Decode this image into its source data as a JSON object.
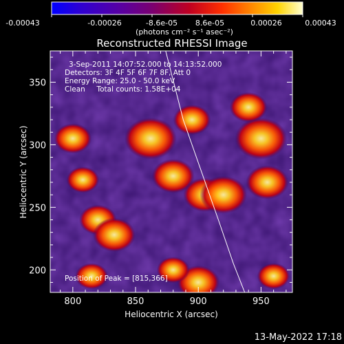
{
  "header": {
    "colorbar_ticks": [
      "-0.00043",
      "-0.00026",
      "-8.6e-05",
      "8.6e-05",
      "0.00026",
      "0.00043"
    ],
    "colorbar_units": "(photons cm⁻² s⁻¹ asec⁻²)",
    "colorbar_range": [
      -0.00043,
      0.00043
    ]
  },
  "footer": {
    "datetime": "13-May-2022 17:18"
  },
  "chart_data": {
    "type": "heatmap",
    "title": "Reconstructed RHESSI Image",
    "xlabel": "Heliocentric X (arcsec)",
    "ylabel": "Heliocentric Y (arcsec)",
    "xlim": [
      782,
      975
    ],
    "ylim": [
      182,
      375
    ],
    "xticks": [
      {
        "value": 800,
        "label": "800"
      },
      {
        "value": 850,
        "label": "850"
      },
      {
        "value": 900,
        "label": "900"
      },
      {
        "value": 950,
        "label": "950"
      }
    ],
    "yticks": [
      {
        "value": 200,
        "label": "200"
      },
      {
        "value": 250,
        "label": "250"
      },
      {
        "value": 300,
        "label": "300"
      },
      {
        "value": 350,
        "label": "350"
      }
    ],
    "annotations": [
      "3-Sep-2011 14:07:52.000 to 14:13:52.000",
      "Detectors: 3F 4F 5F 6F 7F 8F, Att 0",
      "Energy Range: 25.0 - 50.0 keV",
      "Clean     Total counts: 1.58E+04",
      "Position of Peak = [815,366]"
    ],
    "bright_regions": [
      {
        "x": 800,
        "y": 305,
        "value": 0.00025
      },
      {
        "x": 808,
        "y": 272,
        "value": 0.0002
      },
      {
        "x": 820,
        "y": 240,
        "value": 0.00025
      },
      {
        "x": 833,
        "y": 228,
        "value": 0.0003
      },
      {
        "x": 815,
        "y": 195,
        "value": 0.0002
      },
      {
        "x": 862,
        "y": 305,
        "value": 0.0004
      },
      {
        "x": 895,
        "y": 320,
        "value": 0.00025
      },
      {
        "x": 880,
        "y": 275,
        "value": 0.0003
      },
      {
        "x": 905,
        "y": 260,
        "value": 0.0003
      },
      {
        "x": 920,
        "y": 260,
        "value": 0.00035
      },
      {
        "x": 950,
        "y": 305,
        "value": 0.0004
      },
      {
        "x": 940,
        "y": 330,
        "value": 0.00025
      },
      {
        "x": 955,
        "y": 270,
        "value": 0.0003
      },
      {
        "x": 900,
        "y": 190,
        "value": 0.0003
      },
      {
        "x": 880,
        "y": 200,
        "value": 0.0002
      },
      {
        "x": 960,
        "y": 195,
        "value": 0.0002
      }
    ],
    "limb_arc": [
      [
        874,
        375
      ],
      [
        888,
        320
      ],
      [
        902,
        280
      ],
      [
        916,
        240
      ],
      [
        928,
        205
      ],
      [
        937,
        182
      ]
    ]
  }
}
